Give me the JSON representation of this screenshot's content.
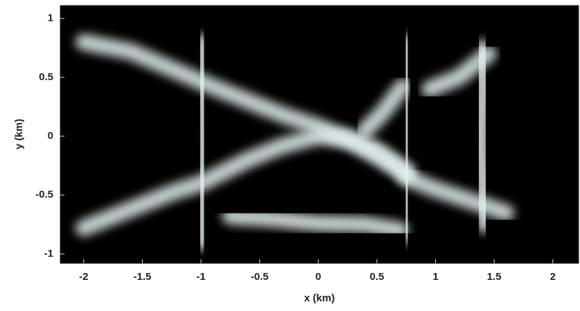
{
  "chart_data": {
    "type": "density",
    "xlabel": "x (km)",
    "ylabel": "y (km)",
    "xlim": [
      -2.2,
      2.22
    ],
    "ylim": [
      -1.08,
      1.11
    ],
    "xticks": [
      -2,
      -1.5,
      -1,
      -0.5,
      0,
      0.5,
      1,
      1.5,
      2
    ],
    "yticks": [
      -1,
      -0.5,
      0,
      0.5,
      1
    ],
    "color": "#e4f0f2",
    "background": "#000000",
    "tracks": [
      {
        "x": [
          -2.0,
          -1.6,
          -1.2,
          -0.9,
          -0.6,
          -0.3,
          0.0,
          0.3,
          0.55,
          0.75
        ],
        "y": [
          0.8,
          0.72,
          0.55,
          0.42,
          0.3,
          0.18,
          0.08,
          -0.05,
          -0.2,
          -0.32
        ]
      },
      {
        "x": [
          -2.0,
          -1.6,
          -1.25,
          -1.0,
          -0.6,
          -0.3,
          0.0,
          0.25,
          0.5,
          0.75
        ],
        "y": [
          -0.78,
          -0.62,
          -0.48,
          -0.4,
          -0.2,
          -0.08,
          0.0,
          -0.02,
          -0.12,
          -0.3
        ]
      },
      {
        "x": [
          -1.0,
          -1.0,
          -0.98,
          -1.0,
          -1.0
        ],
        "y": [
          0.8,
          0.4,
          0.0,
          -0.45,
          -0.9
        ]
      },
      {
        "x": [
          -0.75,
          -0.4,
          0.0,
          0.4,
          0.7
        ],
        "y": [
          -0.68,
          -0.7,
          -0.74,
          -0.75,
          -0.8
        ]
      },
      {
        "x": [
          0.75,
          0.75,
          0.76,
          0.75,
          0.75
        ],
        "y": [
          0.8,
          0.4,
          0.0,
          -0.4,
          -0.85
        ]
      },
      {
        "x": [
          1.4,
          1.4,
          1.38,
          1.4,
          1.42
        ],
        "y": [
          0.75,
          0.35,
          0.0,
          -0.4,
          -0.75
        ]
      },
      {
        "x": [
          0.75,
          1.0,
          1.3,
          1.6
        ],
        "y": [
          -0.35,
          -0.45,
          -0.55,
          -0.65
        ]
      },
      {
        "x": [
          0.95,
          1.2,
          1.45
        ],
        "y": [
          0.4,
          0.5,
          0.7
        ]
      },
      {
        "x": [
          0.4,
          0.55,
          0.72
        ],
        "y": [
          0.05,
          0.2,
          0.42
        ]
      }
    ]
  }
}
